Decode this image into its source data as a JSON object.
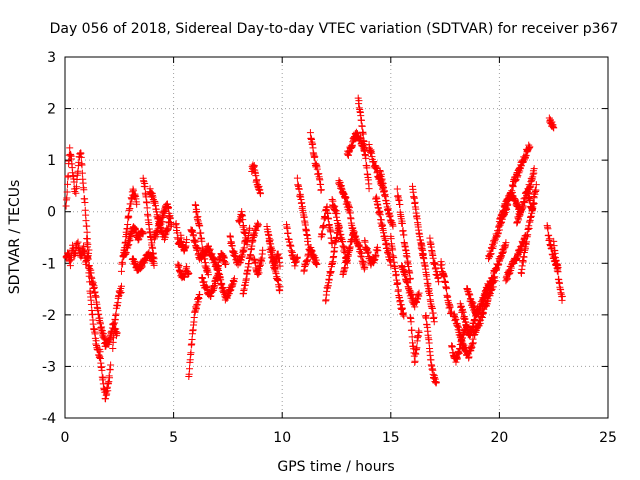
{
  "chart_data": {
    "type": "scatter",
    "title": "Day 056 of 2018, Sidereal Day-to-day VTEC variation (SDTVAR) for receiver p367",
    "xlabel": "GPS time / hours",
    "ylabel": "SDTVAR / TECUs",
    "xlim": [
      0,
      25
    ],
    "ylim": [
      -4,
      3
    ],
    "xticks": [
      0,
      5,
      10,
      15,
      20,
      25
    ],
    "yticks": [
      -4,
      -3,
      -2,
      -1,
      0,
      1,
      2,
      3
    ],
    "xtick_labels": [
      "0",
      "5",
      "10",
      "15",
      "20",
      "25"
    ],
    "ytick_labels": [
      "-4",
      "-3",
      "-2",
      "-1",
      "0",
      "1",
      "2",
      "3"
    ],
    "grid": true,
    "marker": "plus",
    "marker_color": "#ff0000",
    "series": [
      {
        "name": "p367",
        "tracks": [
          {
            "t0": 0.05,
            "t1": 0.45,
            "v": [
              0.1,
              0.6,
              1.2,
              1.0,
              0.7,
              0.4
            ]
          },
          {
            "t0": 0.05,
            "t1": 0.55,
            "v": [
              -0.9,
              -0.8,
              -1.0,
              -0.7,
              -0.9,
              -0.6
            ]
          },
          {
            "t0": 0.5,
            "t1": 1.05,
            "v": [
              0.3,
              0.9,
              1.2,
              0.6,
              0.0,
              -0.6
            ]
          },
          {
            "t0": 0.6,
            "t1": 1.1,
            "v": [
              -0.6,
              -0.9,
              -0.7,
              -1.0,
              -0.8
            ]
          },
          {
            "t0": 1.0,
            "t1": 1.6,
            "v": [
              -0.5,
              -1.5,
              -2.2,
              -2.6,
              -2.8
            ]
          },
          {
            "t0": 1.1,
            "t1": 1.7,
            "v": [
              -1.0,
              -1.3,
              -1.6,
              -2.0,
              -2.3
            ]
          },
          {
            "t0": 1.6,
            "t1": 2.1,
            "v": [
              -2.7,
              -3.2,
              -3.6,
              -3.4,
              -3.0
            ]
          },
          {
            "t0": 1.7,
            "t1": 2.4,
            "v": [
              -2.3,
              -2.6,
              -2.5,
              -2.2,
              -2.4
            ]
          },
          {
            "t0": 2.2,
            "t1": 2.6,
            "v": [
              -2.6,
              -2.1,
              -1.8,
              -1.6,
              -1.5
            ]
          },
          {
            "t0": 2.6,
            "t1": 3.3,
            "v": [
              -1.1,
              -0.6,
              0.0,
              0.4,
              0.2
            ]
          },
          {
            "t0": 2.7,
            "t1": 3.6,
            "v": [
              -0.9,
              -0.6,
              -0.3,
              -0.5,
              -0.4
            ]
          },
          {
            "t0": 3.1,
            "t1": 4.1,
            "v": [
              -0.9,
              -1.1,
              -1.0,
              -0.8,
              -1.0
            ]
          },
          {
            "t0": 3.6,
            "t1": 4.1,
            "v": [
              0.7,
              0.3,
              -0.2,
              -0.6,
              -0.9
            ]
          },
          {
            "t0": 3.9,
            "t1": 4.8,
            "v": [
              0.4,
              0.2,
              -0.3,
              -0.5,
              -0.2
            ]
          },
          {
            "t0": 4.1,
            "t1": 4.9,
            "v": [
              -0.5,
              -0.3,
              -0.1,
              0.2,
              -0.3
            ]
          },
          {
            "t0": 5.1,
            "t1": 5.6,
            "v": [
              -0.2,
              -0.6,
              -0.5,
              -0.8,
              -0.6
            ]
          },
          {
            "t0": 5.2,
            "t1": 5.7,
            "v": [
              -1.0,
              -1.2,
              -1.3,
              -1.1,
              -1.2
            ]
          },
          {
            "t0": 5.7,
            "t1": 6.2,
            "v": [
              -3.2,
              -2.6,
              -2.0,
              -1.8,
              -1.6
            ]
          },
          {
            "t0": 5.8,
            "t1": 6.6,
            "v": [
              -0.3,
              -0.6,
              -0.9,
              -0.8,
              -0.7
            ]
          },
          {
            "t0": 6.0,
            "t1": 6.6,
            "v": [
              0.1,
              -0.2,
              -0.6,
              -1.0,
              -1.2
            ]
          },
          {
            "t0": 6.3,
            "t1": 7.1,
            "v": [
              -1.3,
              -1.5,
              -1.6,
              -1.4,
              -1.2
            ]
          },
          {
            "t0": 6.6,
            "t1": 7.4,
            "v": [
              -0.7,
              -0.9,
              -1.1,
              -0.8,
              -1.0
            ]
          },
          {
            "t0": 7.0,
            "t1": 7.8,
            "v": [
              -1.1,
              -1.4,
              -1.7,
              -1.5,
              -1.3
            ]
          },
          {
            "t0": 7.6,
            "t1": 8.3,
            "v": [
              -0.5,
              -0.8,
              -1.0,
              -0.9,
              -0.6
            ]
          },
          {
            "t0": 8.0,
            "t1": 8.5,
            "v": [
              -0.2,
              0.0,
              -0.4,
              -0.6,
              -0.3
            ]
          },
          {
            "t0": 8.2,
            "t1": 8.9,
            "v": [
              -1.6,
              -1.2,
              -0.8,
              -0.4,
              -0.2
            ]
          },
          {
            "t0": 8.6,
            "t1": 9.0,
            "v": [
              0.8,
              0.9,
              0.6,
              0.5,
              0.4
            ]
          },
          {
            "t0": 8.7,
            "t1": 9.1,
            "v": [
              -0.9,
              -1.1,
              -1.2,
              -1.0,
              -0.8
            ]
          },
          {
            "t0": 9.3,
            "t1": 9.9,
            "v": [
              -0.3,
              -0.6,
              -0.9,
              -1.3,
              -1.5
            ]
          },
          {
            "t0": 9.4,
            "t1": 9.9,
            "v": [
              -0.6,
              -0.9,
              -1.1,
              -0.8,
              -1.0
            ]
          },
          {
            "t0": 10.2,
            "t1": 10.7,
            "v": [
              -0.3,
              -0.6,
              -0.8,
              -1.0,
              -0.9
            ]
          },
          {
            "t0": 10.7,
            "t1": 11.2,
            "v": [
              0.6,
              0.3,
              0.0,
              -0.3,
              -0.6
            ]
          },
          {
            "t0": 11.0,
            "t1": 11.6,
            "v": [
              -1.1,
              -0.9,
              -0.7,
              -0.9,
              -1.0
            ]
          },
          {
            "t0": 11.3,
            "t1": 11.8,
            "v": [
              1.5,
              1.2,
              0.9,
              0.7,
              0.4
            ]
          },
          {
            "t0": 11.8,
            "t1": 12.3,
            "v": [
              -0.5,
              -0.2,
              0.1,
              -0.3,
              -0.6
            ]
          },
          {
            "t0": 12.0,
            "t1": 12.6,
            "v": [
              -1.7,
              -1.3,
              -1.0,
              -0.6,
              -0.3
            ]
          },
          {
            "t0": 12.3,
            "t1": 13.0,
            "v": [
              0.2,
              0.0,
              -0.4,
              -0.7,
              -1.0
            ]
          },
          {
            "t0": 12.6,
            "t1": 13.3,
            "v": [
              0.6,
              0.4,
              0.2,
              0.0,
              -0.5
            ]
          },
          {
            "t0": 12.8,
            "t1": 13.8,
            "v": [
              -1.2,
              -0.8,
              -0.4,
              -0.7,
              -1.1
            ]
          },
          {
            "t0": 13.0,
            "t1": 13.8,
            "v": [
              1.1,
              1.3,
              1.5,
              1.4,
              1.2
            ]
          },
          {
            "t0": 13.5,
            "t1": 14.0,
            "v": [
              2.2,
              1.8,
              1.4,
              0.9,
              0.5
            ]
          },
          {
            "t0": 13.8,
            "t1": 14.4,
            "v": [
              -0.6,
              -0.8,
              -1.0,
              -0.9,
              -0.7
            ]
          },
          {
            "t0": 14.0,
            "t1": 14.7,
            "v": [
              1.3,
              1.0,
              0.8,
              0.6,
              0.4
            ]
          },
          {
            "t0": 14.3,
            "t1": 15.0,
            "v": [
              0.3,
              0.0,
              -0.4,
              -0.7,
              -1.0
            ]
          },
          {
            "t0": 14.5,
            "t1": 15.1,
            "v": [
              0.8,
              0.5,
              0.2,
              -0.1,
              -0.3
            ]
          },
          {
            "t0": 15.0,
            "t1": 15.6,
            "v": [
              -0.5,
              -1.0,
              -1.4,
              -1.8,
              -2.0
            ]
          },
          {
            "t0": 15.3,
            "t1": 15.9,
            "v": [
              0.4,
              0.0,
              -0.5,
              -0.9,
              -1.3
            ]
          },
          {
            "t0": 15.5,
            "t1": 16.3,
            "v": [
              -1.0,
              -1.3,
              -1.6,
              -1.8,
              -1.6
            ]
          },
          {
            "t0": 15.9,
            "t1": 16.3,
            "v": [
              -2.0,
              -2.5,
              -2.9,
              -2.6,
              -2.3
            ]
          },
          {
            "t0": 16.0,
            "t1": 16.5,
            "v": [
              0.5,
              0.1,
              -0.3,
              -0.6,
              -0.9
            ]
          },
          {
            "t0": 16.4,
            "t1": 17.0,
            "v": [
              -0.6,
              -1.0,
              -1.4,
              -1.8,
              -2.1
            ]
          },
          {
            "t0": 16.6,
            "t1": 17.1,
            "v": [
              -2.0,
              -2.4,
              -2.9,
              -3.2,
              -3.3
            ]
          },
          {
            "t0": 16.8,
            "t1": 17.2,
            "v": [
              -0.5,
              -0.8,
              -1.0,
              -1.2,
              -1.3
            ]
          },
          {
            "t0": 17.3,
            "t1": 17.8,
            "v": [
              -1.0,
              -1.2,
              -1.5,
              -1.8,
              -2.0
            ]
          },
          {
            "t0": 17.8,
            "t1": 18.5,
            "v": [
              -2.6,
              -2.9,
              -2.7,
              -2.4,
              -2.2
            ]
          },
          {
            "t0": 17.9,
            "t1": 18.8,
            "v": [
              -2.0,
              -2.3,
              -2.6,
              -2.8,
              -2.5
            ]
          },
          {
            "t0": 18.2,
            "t1": 19.0,
            "v": [
              -1.8,
              -2.1,
              -2.4,
              -2.2,
              -1.9
            ]
          },
          {
            "t0": 18.5,
            "t1": 19.5,
            "v": [
              -1.5,
              -1.8,
              -2.0,
              -1.7,
              -1.4
            ]
          },
          {
            "t0": 18.8,
            "t1": 19.8,
            "v": [
              -2.4,
              -2.2,
              -1.9,
              -1.6,
              -1.3
            ]
          },
          {
            "t0": 19.2,
            "t1": 20.3,
            "v": [
              -1.8,
              -1.5,
              -1.2,
              -0.9,
              -0.6
            ]
          },
          {
            "t0": 19.5,
            "t1": 20.5,
            "v": [
              -0.9,
              -0.6,
              -0.3,
              0.0,
              0.3
            ]
          },
          {
            "t0": 20.0,
            "t1": 21.0,
            "v": [
              -0.2,
              0.1,
              0.4,
              0.2,
              0.0
            ]
          },
          {
            "t0": 20.3,
            "t1": 21.2,
            "v": [
              -1.3,
              -1.1,
              -0.9,
              -0.7,
              -0.5
            ]
          },
          {
            "t0": 20.6,
            "t1": 21.4,
            "v": [
              0.5,
              0.7,
              0.9,
              1.1,
              1.3
            ]
          },
          {
            "t0": 20.8,
            "t1": 21.6,
            "v": [
              -0.2,
              0.0,
              0.3,
              0.5,
              0.8
            ]
          },
          {
            "t0": 21.0,
            "t1": 21.6,
            "v": [
              -1.2,
              -0.8,
              -0.4,
              -0.1,
              0.2
            ]
          },
          {
            "t0": 21.3,
            "t1": 21.7,
            "v": [
              0.4,
              0.2,
              0.0,
              0.3,
              0.5
            ]
          },
          {
            "t0": 22.3,
            "t1": 22.5,
            "v": [
              1.8,
              1.7,
              1.6
            ]
          },
          {
            "t0": 22.2,
            "t1": 22.7,
            "v": [
              -0.3,
              -0.6,
              -0.8,
              -1.0,
              -1.1
            ]
          },
          {
            "t0": 22.5,
            "t1": 22.9,
            "v": [
              -0.6,
              -0.9,
              -1.2,
              -1.5,
              -1.7
            ]
          }
        ]
      }
    ]
  }
}
